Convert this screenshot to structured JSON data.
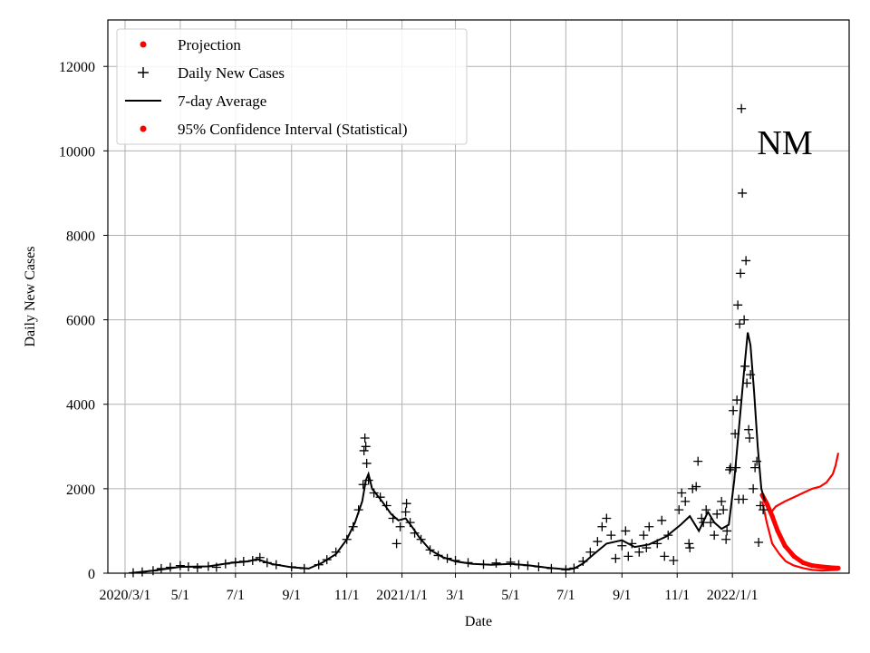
{
  "chart_data": {
    "type": "line",
    "xlabel": "Date",
    "ylabel": "Daily New Cases",
    "annotation": "NM",
    "ylim": [
      0,
      13100
    ],
    "xlim": [
      "2020-02-11",
      "2022-05-10"
    ],
    "grid": true,
    "legend_position": "upper-left",
    "xticks": [
      {
        "date": "2020-03-01",
        "label": "2020/3/1"
      },
      {
        "date": "2020-05-01",
        "label": "5/1"
      },
      {
        "date": "2020-07-01",
        "label": "7/1"
      },
      {
        "date": "2020-09-01",
        "label": "9/1"
      },
      {
        "date": "2020-11-01",
        "label": "11/1"
      },
      {
        "date": "2021-01-01",
        "label": "2021/1/1"
      },
      {
        "date": "2021-03-01",
        "label": "3/1"
      },
      {
        "date": "2021-05-01",
        "label": "5/1"
      },
      {
        "date": "2021-07-01",
        "label": "7/1"
      },
      {
        "date": "2021-09-01",
        "label": "9/1"
      },
      {
        "date": "2021-11-01",
        "label": "11/1"
      },
      {
        "date": "2022-01-01",
        "label": "2022/1/1"
      }
    ],
    "yticks": [
      0,
      2000,
      4000,
      6000,
      8000,
      10000,
      12000
    ],
    "legend": [
      {
        "label": "Projection",
        "marker": "dot",
        "color": "#ff0000"
      },
      {
        "label": "Daily New Cases",
        "marker": "plus",
        "color": "#000000"
      },
      {
        "label": "7-day Average",
        "marker": "line",
        "color": "#000000"
      },
      {
        "label": "95% Confidence Interval (Statistical)",
        "marker": "dot",
        "color": "#ff0000"
      }
    ],
    "series": [
      {
        "name": "7-day Average",
        "color": "#000000",
        "points": [
          [
            "2020-03-08",
            5
          ],
          [
            "2020-04-01",
            60
          ],
          [
            "2020-05-01",
            150
          ],
          [
            "2020-06-01",
            160
          ],
          [
            "2020-06-25",
            240
          ],
          [
            "2020-07-15",
            280
          ],
          [
            "2020-07-25",
            330
          ],
          [
            "2020-08-10",
            220
          ],
          [
            "2020-09-01",
            140
          ],
          [
            "2020-09-20",
            110
          ],
          [
            "2020-10-05",
            250
          ],
          [
            "2020-10-20",
            450
          ],
          [
            "2020-11-01",
            800
          ],
          [
            "2020-11-10",
            1200
          ],
          [
            "2020-11-18",
            1700
          ],
          [
            "2020-11-22",
            2200
          ],
          [
            "2020-11-25",
            2350
          ],
          [
            "2020-11-29",
            2000
          ],
          [
            "2020-12-10",
            1700
          ],
          [
            "2020-12-20",
            1400
          ],
          [
            "2020-12-28",
            1250
          ],
          [
            "2021-01-05",
            1300
          ],
          [
            "2021-01-12",
            1100
          ],
          [
            "2021-01-20",
            850
          ],
          [
            "2021-02-01",
            550
          ],
          [
            "2021-02-15",
            380
          ],
          [
            "2021-03-01",
            280
          ],
          [
            "2021-03-20",
            220
          ],
          [
            "2021-04-10",
            200
          ],
          [
            "2021-05-01",
            220
          ],
          [
            "2021-05-20",
            190
          ],
          [
            "2021-06-10",
            130
          ],
          [
            "2021-07-01",
            90
          ],
          [
            "2021-07-10",
            110
          ],
          [
            "2021-07-20",
            230
          ],
          [
            "2021-08-01",
            450
          ],
          [
            "2021-08-15",
            700
          ],
          [
            "2021-09-01",
            780
          ],
          [
            "2021-09-15",
            620
          ],
          [
            "2021-10-01",
            680
          ],
          [
            "2021-10-20",
            870
          ],
          [
            "2021-11-05",
            1150
          ],
          [
            "2021-11-15",
            1350
          ],
          [
            "2021-11-25",
            1000
          ],
          [
            "2021-12-05",
            1450
          ],
          [
            "2021-12-12",
            1200
          ],
          [
            "2021-12-20",
            1050
          ],
          [
            "2021-12-28",
            1150
          ],
          [
            "2022-01-03",
            2200
          ],
          [
            "2022-01-09",
            3600
          ],
          [
            "2022-01-14",
            4800
          ],
          [
            "2022-01-18",
            5700
          ],
          [
            "2022-01-21",
            5400
          ],
          [
            "2022-01-25",
            4300
          ],
          [
            "2022-01-29",
            3000
          ],
          [
            "2022-02-02",
            2000
          ],
          [
            "2022-02-06",
            1700
          ]
        ]
      },
      {
        "name": "Daily New Cases",
        "marker": "plus",
        "color": "#000000",
        "points": [
          [
            "2020-03-10",
            10
          ],
          [
            "2020-03-20",
            30
          ],
          [
            "2020-04-01",
            60
          ],
          [
            "2020-04-10",
            110
          ],
          [
            "2020-04-20",
            140
          ],
          [
            "2020-05-01",
            180
          ],
          [
            "2020-05-10",
            150
          ],
          [
            "2020-05-20",
            130
          ],
          [
            "2020-06-01",
            160
          ],
          [
            "2020-06-10",
            140
          ],
          [
            "2020-06-20",
            220
          ],
          [
            "2020-07-01",
            260
          ],
          [
            "2020-07-10",
            280
          ],
          [
            "2020-07-20",
            300
          ],
          [
            "2020-07-28",
            370
          ],
          [
            "2020-08-05",
            250
          ],
          [
            "2020-08-15",
            200
          ],
          [
            "2020-09-01",
            150
          ],
          [
            "2020-09-15",
            110
          ],
          [
            "2020-10-01",
            200
          ],
          [
            "2020-10-10",
            320
          ],
          [
            "2020-10-20",
            500
          ],
          [
            "2020-11-01",
            800
          ],
          [
            "2020-11-08",
            1100
          ],
          [
            "2020-11-14",
            1500
          ],
          [
            "2020-11-19",
            2100
          ],
          [
            "2020-11-20",
            2900
          ],
          [
            "2020-11-21",
            3200
          ],
          [
            "2020-11-22",
            3000
          ],
          [
            "2020-11-23",
            2600
          ],
          [
            "2020-11-25",
            2200
          ],
          [
            "2020-12-01",
            1900
          ],
          [
            "2020-12-08",
            1800
          ],
          [
            "2020-12-15",
            1600
          ],
          [
            "2020-12-22",
            1300
          ],
          [
            "2020-12-26",
            700
          ],
          [
            "2020-12-30",
            1100
          ],
          [
            "2021-01-05",
            1450
          ],
          [
            "2021-01-06",
            1650
          ],
          [
            "2021-01-10",
            1200
          ],
          [
            "2021-01-15",
            950
          ],
          [
            "2021-01-22",
            800
          ],
          [
            "2021-02-01",
            550
          ],
          [
            "2021-02-10",
            420
          ],
          [
            "2021-02-20",
            350
          ],
          [
            "2021-03-01",
            300
          ],
          [
            "2021-03-15",
            250
          ],
          [
            "2021-04-01",
            210
          ],
          [
            "2021-04-15",
            240
          ],
          [
            "2021-05-01",
            260
          ],
          [
            "2021-05-10",
            200
          ],
          [
            "2021-05-20",
            180
          ],
          [
            "2021-06-01",
            150
          ],
          [
            "2021-06-15",
            110
          ],
          [
            "2021-07-01",
            80
          ],
          [
            "2021-07-10",
            120
          ],
          [
            "2021-07-20",
            280
          ],
          [
            "2021-07-28",
            500
          ],
          [
            "2021-08-05",
            750
          ],
          [
            "2021-08-10",
            1100
          ],
          [
            "2021-08-15",
            1300
          ],
          [
            "2021-08-20",
            900
          ],
          [
            "2021-08-25",
            350
          ],
          [
            "2021-09-01",
            650
          ],
          [
            "2021-09-05",
            1000
          ],
          [
            "2021-09-12",
            700
          ],
          [
            "2021-09-20",
            500
          ],
          [
            "2021-09-25",
            900
          ],
          [
            "2021-10-01",
            1100
          ],
          [
            "2021-10-10",
            700
          ],
          [
            "2021-10-15",
            1250
          ],
          [
            "2021-10-22",
            900
          ],
          [
            "2021-10-28",
            300
          ],
          [
            "2021-11-03",
            1500
          ],
          [
            "2021-11-06",
            1900
          ],
          [
            "2021-11-10",
            1700
          ],
          [
            "2021-11-14",
            700
          ],
          [
            "2021-11-18",
            2000
          ],
          [
            "2021-11-22",
            2050
          ],
          [
            "2021-11-24",
            2650
          ],
          [
            "2021-11-28",
            1300
          ],
          [
            "2021-12-03",
            1500
          ],
          [
            "2021-12-08",
            1200
          ],
          [
            "2021-12-12",
            900
          ],
          [
            "2021-12-15",
            1400
          ],
          [
            "2021-12-20",
            1700
          ],
          [
            "2021-12-25",
            800
          ],
          [
            "2021-12-29",
            2450
          ],
          [
            "2021-12-30",
            2500
          ],
          [
            "2022-01-02",
            3850
          ],
          [
            "2022-01-04",
            3300
          ],
          [
            "2022-01-06",
            4100
          ],
          [
            "2022-01-07",
            6350
          ],
          [
            "2022-01-09",
            5900
          ],
          [
            "2022-01-10",
            7100
          ],
          [
            "2022-01-11",
            11000
          ],
          [
            "2022-01-12",
            9000
          ],
          [
            "2022-01-14",
            6000
          ],
          [
            "2022-01-15",
            4900
          ],
          [
            "2022-01-16",
            7400
          ],
          [
            "2022-01-17",
            4500
          ],
          [
            "2022-01-19",
            3400
          ],
          [
            "2022-01-20",
            3200
          ],
          [
            "2022-01-21",
            4700
          ],
          [
            "2022-01-24",
            2000
          ],
          [
            "2022-01-26",
            2500
          ],
          [
            "2022-01-28",
            2650
          ],
          [
            "2022-01-30",
            730
          ],
          [
            "2022-02-01",
            1600
          ],
          [
            "2022-02-04",
            1500
          ],
          [
            "2022-01-13",
            1750
          ],
          [
            "2022-01-08",
            1750
          ],
          [
            "2022-01-05",
            2500
          ],
          [
            "2021-12-22",
            1500
          ],
          [
            "2021-12-26",
            1000
          ],
          [
            "2021-11-30",
            1200
          ],
          [
            "2021-11-15",
            600
          ],
          [
            "2021-10-18",
            400
          ],
          [
            "2021-09-28",
            600
          ],
          [
            "2021-09-08",
            400
          ]
        ]
      },
      {
        "name": "Projection",
        "marker": "dot",
        "color": "#ff0000",
        "points": [
          [
            "2022-02-03",
            1850
          ],
          [
            "2022-02-08",
            1650
          ],
          [
            "2022-02-14",
            1350
          ],
          [
            "2022-02-20",
            1000
          ],
          [
            "2022-02-28",
            650
          ],
          [
            "2022-03-10",
            400
          ],
          [
            "2022-03-20",
            250
          ],
          [
            "2022-03-30",
            180
          ],
          [
            "2022-04-10",
            150
          ],
          [
            "2022-04-20",
            130
          ],
          [
            "2022-04-28",
            120
          ]
        ]
      },
      {
        "name": "95% Confidence Interval (Statistical)",
        "marker": "dot",
        "color": "#ff0000",
        "upper": [
          [
            "2022-02-03",
            1800
          ],
          [
            "2022-02-08",
            1700
          ],
          [
            "2022-02-13",
            1450
          ],
          [
            "2022-02-18",
            1580
          ],
          [
            "2022-02-28",
            1700
          ],
          [
            "2022-03-10",
            1800
          ],
          [
            "2022-03-20",
            1900
          ],
          [
            "2022-03-30",
            2000
          ],
          [
            "2022-04-08",
            2050
          ],
          [
            "2022-04-15",
            2150
          ],
          [
            "2022-04-22",
            2350
          ],
          [
            "2022-04-25",
            2550
          ],
          [
            "2022-04-28",
            2850
          ]
        ],
        "lower": [
          [
            "2022-02-03",
            1700
          ],
          [
            "2022-02-08",
            1200
          ],
          [
            "2022-02-14",
            700
          ],
          [
            "2022-02-22",
            450
          ],
          [
            "2022-03-01",
            280
          ],
          [
            "2022-03-10",
            180
          ],
          [
            "2022-03-20",
            120
          ],
          [
            "2022-03-30",
            80
          ],
          [
            "2022-04-10",
            60
          ],
          [
            "2022-04-20",
            70
          ],
          [
            "2022-04-28",
            80
          ]
        ]
      }
    ]
  }
}
